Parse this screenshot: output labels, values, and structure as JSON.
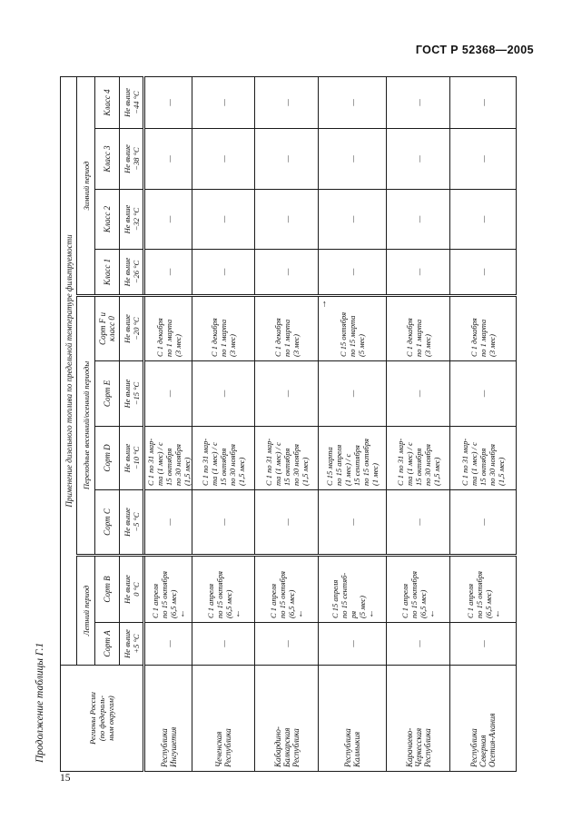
{
  "page": {
    "header": "ГОСТ Р 52368—2005",
    "table_continuation": "Продолжение таблицы Г.1",
    "page_number": "15"
  },
  "table": {
    "title": "Применение дизельного топлива по предельной температуре фильтруемости",
    "stub_header_lines": [
      "Регионы России",
      "(по федераль-",
      "ным округам)"
    ],
    "period_groups": [
      {
        "label": "Летний период",
        "span": 2
      },
      {
        "label": "Переходные весенний/осенний периоды",
        "span": 4
      },
      {
        "label": "Зимний период",
        "span": 4
      }
    ],
    "grade_headers": [
      {
        "name_lines": [
          "Сорт A"
        ],
        "temp_lines": [
          "Не выше",
          "+5 °С"
        ]
      },
      {
        "name_lines": [
          "Сорт B"
        ],
        "temp_lines": [
          "Не выше",
          "0 °С"
        ]
      },
      {
        "name_lines": [
          "Сорт C"
        ],
        "temp_lines": [
          "Не выше",
          "−5 °С"
        ]
      },
      {
        "name_lines": [
          "Сорт D"
        ],
        "temp_lines": [
          "Не выше",
          "−10 °С"
        ]
      },
      {
        "name_lines": [
          "Сорт E"
        ],
        "temp_lines": [
          "Не выше",
          "−15 °С"
        ]
      },
      {
        "name_lines": [
          "Сорт F и",
          "класс 0"
        ],
        "temp_lines": [
          "Не выше",
          "−20 °С"
        ]
      },
      {
        "name_lines": [
          "Класс 1"
        ],
        "temp_lines": [
          "Не выше",
          "−26 °С"
        ]
      },
      {
        "name_lines": [
          "Класс 2"
        ],
        "temp_lines": [
          "Не выше",
          "−32 °С"
        ]
      },
      {
        "name_lines": [
          "Класс 3"
        ],
        "temp_lines": [
          "Не выше",
          "−38 °С"
        ]
      },
      {
        "name_lines": [
          "Класс 4"
        ],
        "temp_lines": [
          "Не выше",
          "−44 °С"
        ]
      }
    ],
    "dash": "—",
    "arrows": {
      "left": "←",
      "right": "→"
    },
    "rows": [
      {
        "region_lines": [
          "Республика",
          "Ингушетия"
        ],
        "cells": [
          {
            "dash": true
          },
          {
            "lines": [
              "С 1 апреля",
              "по 15 октября",
              "(6,5 мес)"
            ],
            "arrow": "left"
          },
          {
            "dash": true
          },
          {
            "lines": [
              "С 1 по 31 мар-",
              "та (1 мес) / с",
              "15 октября",
              "по 30 ноября",
              "(1,5 мес)"
            ]
          },
          {
            "dash": true
          },
          {
            "lines": [
              "С 1 декабря",
              "по 1 марта",
              "(3 мес)"
            ]
          },
          {
            "dash": true
          },
          {
            "dash": true
          },
          {
            "dash": true
          },
          {
            "dash": true
          }
        ]
      },
      {
        "region_lines": [
          "Чеченская",
          "Республика"
        ],
        "cells": [
          {
            "dash": true
          },
          {
            "lines": [
              "С 1 апреля",
              "по 15 октября",
              "(6,5 мес)"
            ],
            "arrow": "left"
          },
          {
            "dash": true
          },
          {
            "lines": [
              "С 1 по 31 мар-",
              "та (1 мес) / с",
              "15 октября",
              "по 30 ноября",
              "(1,5 мес)"
            ]
          },
          {
            "dash": true
          },
          {
            "lines": [
              "С 1 декабря",
              "по 1 марта",
              "(3 мес)"
            ]
          },
          {
            "dash": true
          },
          {
            "dash": true
          },
          {
            "dash": true
          },
          {
            "dash": true
          }
        ]
      },
      {
        "region_lines": [
          "Кабардино-",
          "Балкарская",
          "Республика"
        ],
        "cells": [
          {
            "dash": true
          },
          {
            "lines": [
              "С 1 апреля",
              "по 15 октября",
              "(6,5 мес)"
            ],
            "arrow": "left"
          },
          {
            "dash": true
          },
          {
            "lines": [
              "С 1 по 31 мар-",
              "та (1 мес) / с",
              "15 октября",
              "по 30 ноября",
              "(1,5 мес)"
            ]
          },
          {
            "dash": true
          },
          {
            "lines": [
              "С 1 декабря",
              "по 1 марта",
              "(3 мес)"
            ]
          },
          {
            "dash": true
          },
          {
            "dash": true
          },
          {
            "dash": true
          },
          {
            "dash": true
          }
        ]
      },
      {
        "region_lines": [
          "Республика",
          "Калмыкия"
        ],
        "cells": [
          {
            "dash": true
          },
          {
            "lines": [
              "С 15 апреля",
              "по 15 сентяб-",
              "ря",
              "(5 мес)"
            ],
            "arrow": "left"
          },
          {
            "dash": true
          },
          {
            "lines": [
              "С 15 марта",
              "по 15 апреля",
              "(1 мес) / с",
              "15 сентября",
              "по 15 октября",
              "(1 мес)"
            ]
          },
          {
            "dash": true
          },
          {
            "lines": [
              "С 15 октября",
              "по 15 марта",
              "(5 мес)"
            ],
            "arrow": "right"
          },
          {
            "dash": true
          },
          {
            "dash": true
          },
          {
            "dash": true
          },
          {
            "dash": true
          }
        ]
      },
      {
        "region_lines": [
          "Карачаево-",
          "Черкесская",
          "Республика"
        ],
        "cells": [
          {
            "dash": true
          },
          {
            "lines": [
              "С 1 апреля",
              "по 15 октября",
              "(6,5 мес)"
            ],
            "arrow": "left"
          },
          {
            "dash": true
          },
          {
            "lines": [
              "С 1 по 31 мар-",
              "та (1 мес) / с",
              "15 октября",
              "по 30 ноября",
              "(1,5 мес)"
            ]
          },
          {
            "dash": true
          },
          {
            "lines": [
              "С 1 декабря",
              "по 1 марта",
              "(3 мес)"
            ]
          },
          {
            "dash": true
          },
          {
            "dash": true
          },
          {
            "dash": true
          },
          {
            "dash": true
          }
        ]
      },
      {
        "region_lines": [
          "Республика",
          "Северная",
          "Осетия-Алания"
        ],
        "cells": [
          {
            "dash": true
          },
          {
            "lines": [
              "С 1 апреля",
              "по 15 октября",
              "(6,5 мес)"
            ],
            "arrow": "left"
          },
          {
            "dash": true
          },
          {
            "lines": [
              "С 1 по 31 мар-",
              "та (1 мес) / с",
              "15 октября",
              "по 30 ноября",
              "(1,5 мес)"
            ]
          },
          {
            "dash": true
          },
          {
            "lines": [
              "С 1 декабря",
              "по 1 марта",
              "(3 мес)"
            ]
          },
          {
            "dash": true
          },
          {
            "dash": true
          },
          {
            "dash": true
          },
          {
            "dash": true
          }
        ]
      }
    ]
  }
}
